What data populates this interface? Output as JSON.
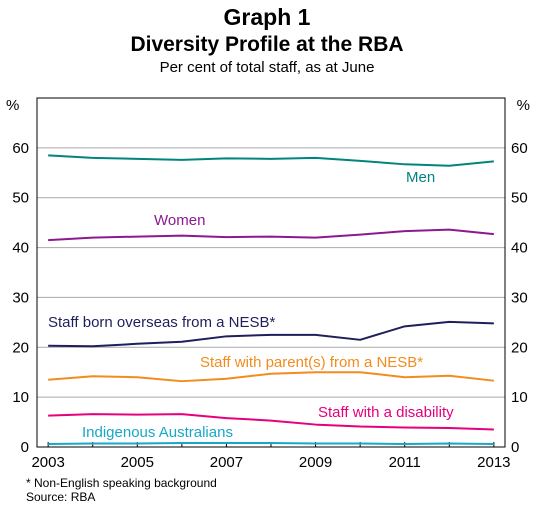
{
  "header": {
    "graph_number": "Graph 1",
    "title": "Diversity Profile at the RBA",
    "subtitle": "Per cent of total staff, as at June"
  },
  "footnotes": {
    "note": "*     Non-English speaking background",
    "source": "Source: RBA"
  },
  "colors": {
    "men": "#00857c",
    "women": "#8b1a8f",
    "overseas": "#1f1f5c",
    "parents": "#f28c1e",
    "disability": "#e6007e",
    "indigenous": "#18a7c9",
    "grid": "#a9a9a9",
    "axis": "#000000"
  },
  "chart_data": {
    "type": "line",
    "unit_left": "%",
    "unit_right": "%",
    "x": [
      2003,
      2004,
      2005,
      2006,
      2007,
      2008,
      2009,
      2010,
      2011,
      2012,
      2013
    ],
    "xlim": [
      2002.75,
      2013.25
    ],
    "ylim": [
      0,
      70
    ],
    "yticks": [
      0,
      10,
      20,
      30,
      40,
      50,
      60
    ],
    "xticks": [
      2003,
      2005,
      2007,
      2009,
      2011,
      2013
    ],
    "grid": true,
    "series": [
      {
        "key": "men",
        "name": "Men",
        "values": [
          58.5,
          58.0,
          57.8,
          57.6,
          57.9,
          57.8,
          58.0,
          57.4,
          56.7,
          56.4,
          57.3
        ]
      },
      {
        "key": "women",
        "name": "Women",
        "values": [
          41.5,
          42.0,
          42.2,
          42.4,
          42.1,
          42.2,
          42.0,
          42.6,
          43.3,
          43.6,
          42.7
        ]
      },
      {
        "key": "overseas",
        "name": "Staff born overseas from a NESB*",
        "values": [
          20.3,
          20.2,
          20.7,
          21.1,
          22.2,
          22.5,
          22.5,
          21.5,
          24.2,
          25.1,
          24.8
        ]
      },
      {
        "key": "parents",
        "name": "Staff with parent(s) from a NESB*",
        "values": [
          13.5,
          14.2,
          14.0,
          13.2,
          13.7,
          14.7,
          15.0,
          15.0,
          14.0,
          14.3,
          13.3
        ]
      },
      {
        "key": "disability",
        "name": "Staff with a disability",
        "values": [
          6.3,
          6.6,
          6.5,
          6.6,
          5.8,
          5.3,
          4.5,
          4.1,
          3.9,
          3.8,
          3.5
        ]
      },
      {
        "key": "indigenous",
        "name": "Indigenous Australians",
        "values": [
          0.6,
          0.7,
          0.7,
          0.8,
          0.8,
          0.8,
          0.7,
          0.7,
          0.6,
          0.7,
          0.6
        ]
      }
    ]
  }
}
